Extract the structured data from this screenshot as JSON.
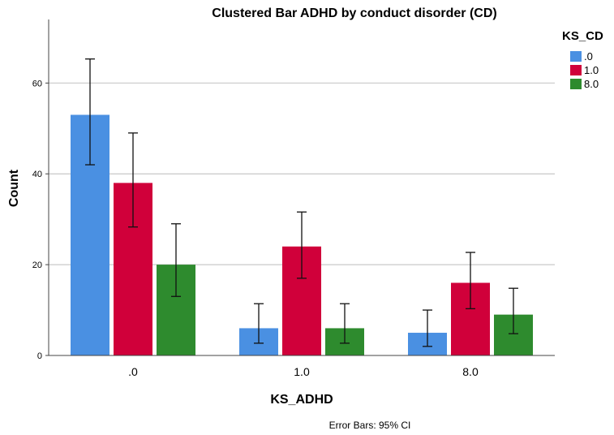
{
  "chart_data": {
    "type": "bar",
    "title": "Clustered Bar ADHD by conduct disorder (CD)",
    "xlabel": "KS_ADHD",
    "ylabel": "Count",
    "categories": [
      ".0",
      "1.0",
      "8.0"
    ],
    "ylim": [
      0,
      74
    ],
    "yticks": [
      0,
      20,
      40,
      60
    ],
    "grid": true,
    "legend_title": "KS_CD",
    "legend_position": "top-right",
    "series": [
      {
        "name": ".0",
        "color": "#4a90e2",
        "values": [
          53,
          6,
          5
        ],
        "ci_low": [
          42,
          2.7,
          2
        ],
        "ci_high": [
          65.3,
          11.4,
          10
        ]
      },
      {
        "name": "1.0",
        "color": "#d0003a",
        "values": [
          38,
          24,
          16
        ],
        "ci_low": [
          28.3,
          17,
          10.3
        ],
        "ci_high": [
          49,
          31.6,
          22.7
        ]
      },
      {
        "name": "8.0",
        "color": "#2e8b2e",
        "values": [
          20,
          6,
          9
        ],
        "ci_low": [
          13,
          2.7,
          4.8
        ],
        "ci_high": [
          29,
          11.4,
          14.8
        ]
      }
    ],
    "footnote": "Error Bars: 95% CI"
  }
}
